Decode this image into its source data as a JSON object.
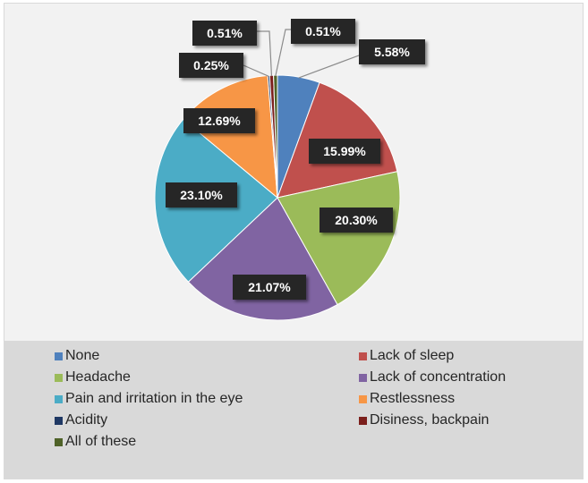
{
  "chart_data": {
    "type": "pie",
    "title": "",
    "slices": [
      {
        "label": "None",
        "value": 5.58,
        "display": "5.58%",
        "color": "#4f81bd"
      },
      {
        "label": "Lack of sleep",
        "value": 15.99,
        "display": "15.99%",
        "color": "#c0504d"
      },
      {
        "label": "Headache",
        "value": 20.3,
        "display": "20.30%",
        "color": "#9bbb59"
      },
      {
        "label": "Lack of concentration",
        "value": 21.07,
        "display": "21.07%",
        "color": "#8064a2"
      },
      {
        "label": "Pain and irritation in the eye",
        "value": 23.1,
        "display": "23.10%",
        "color": "#4bacc6"
      },
      {
        "label": "Restlessness",
        "value": 12.69,
        "display": "12.69%",
        "color": "#f79646"
      },
      {
        "label": "Acidity",
        "value": 0.25,
        "display": "0.25%",
        "color": "#1f3864"
      },
      {
        "label": "Disiness, backpain",
        "value": 0.51,
        "display": "0.51%",
        "color": "#7b1f1c"
      },
      {
        "label": "All of these",
        "value": 0.51,
        "display": "0.51%",
        "color": "#4f6228"
      }
    ],
    "legend_position": "bottom",
    "label_style": "dark callout boxes with leader lines for small slices"
  }
}
